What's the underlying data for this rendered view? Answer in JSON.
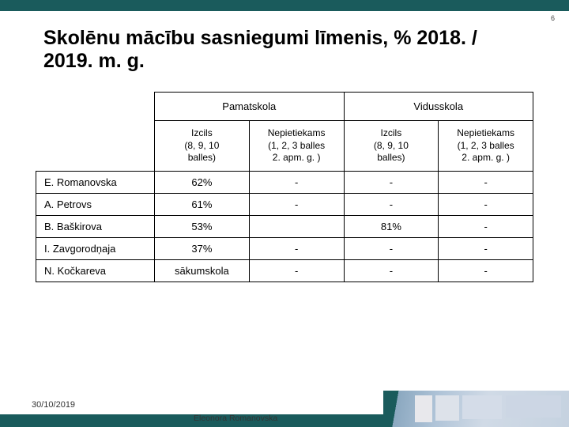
{
  "slide": {
    "number": "6",
    "title": "Skolēnu mācību sasniegumi līmenis, % 2018. / 2019. m. g.",
    "date": "30/10/2019",
    "author": "Eleonora Romanovska"
  },
  "table": {
    "group_headers": [
      "Pamatskola",
      "Vidusskola"
    ],
    "sub_headers": [
      "Izcils\n(8, 9, 10\nballes)",
      "Nepietiekams\n(1, 2, 3 balles\n2. apm. g. )",
      "Izcils\n(8, 9, 10\nballes)",
      "Nepietiekams\n(1, 2, 3 balles\n2. apm. g. )"
    ],
    "rows": [
      {
        "name": "E. Romanovska",
        "v": [
          "62%",
          "-",
          "-",
          "-"
        ]
      },
      {
        "name": "A. Petrovs",
        "v": [
          "61%",
          "-",
          "-",
          "-"
        ]
      },
      {
        "name": "B. Baškirova",
        "v": [
          "53%",
          "",
          "81%",
          "-"
        ]
      },
      {
        "name": "I. Zavgorodņaja",
        "v": [
          "37%",
          "-",
          "-",
          "-"
        ]
      },
      {
        "name": "N. Kočkareva",
        "v": [
          "sākumskola",
          "-",
          "-",
          "-"
        ]
      }
    ]
  },
  "colors": {
    "accent": "#1a5b5c",
    "border": "#000000",
    "bg": "#ffffff"
  }
}
